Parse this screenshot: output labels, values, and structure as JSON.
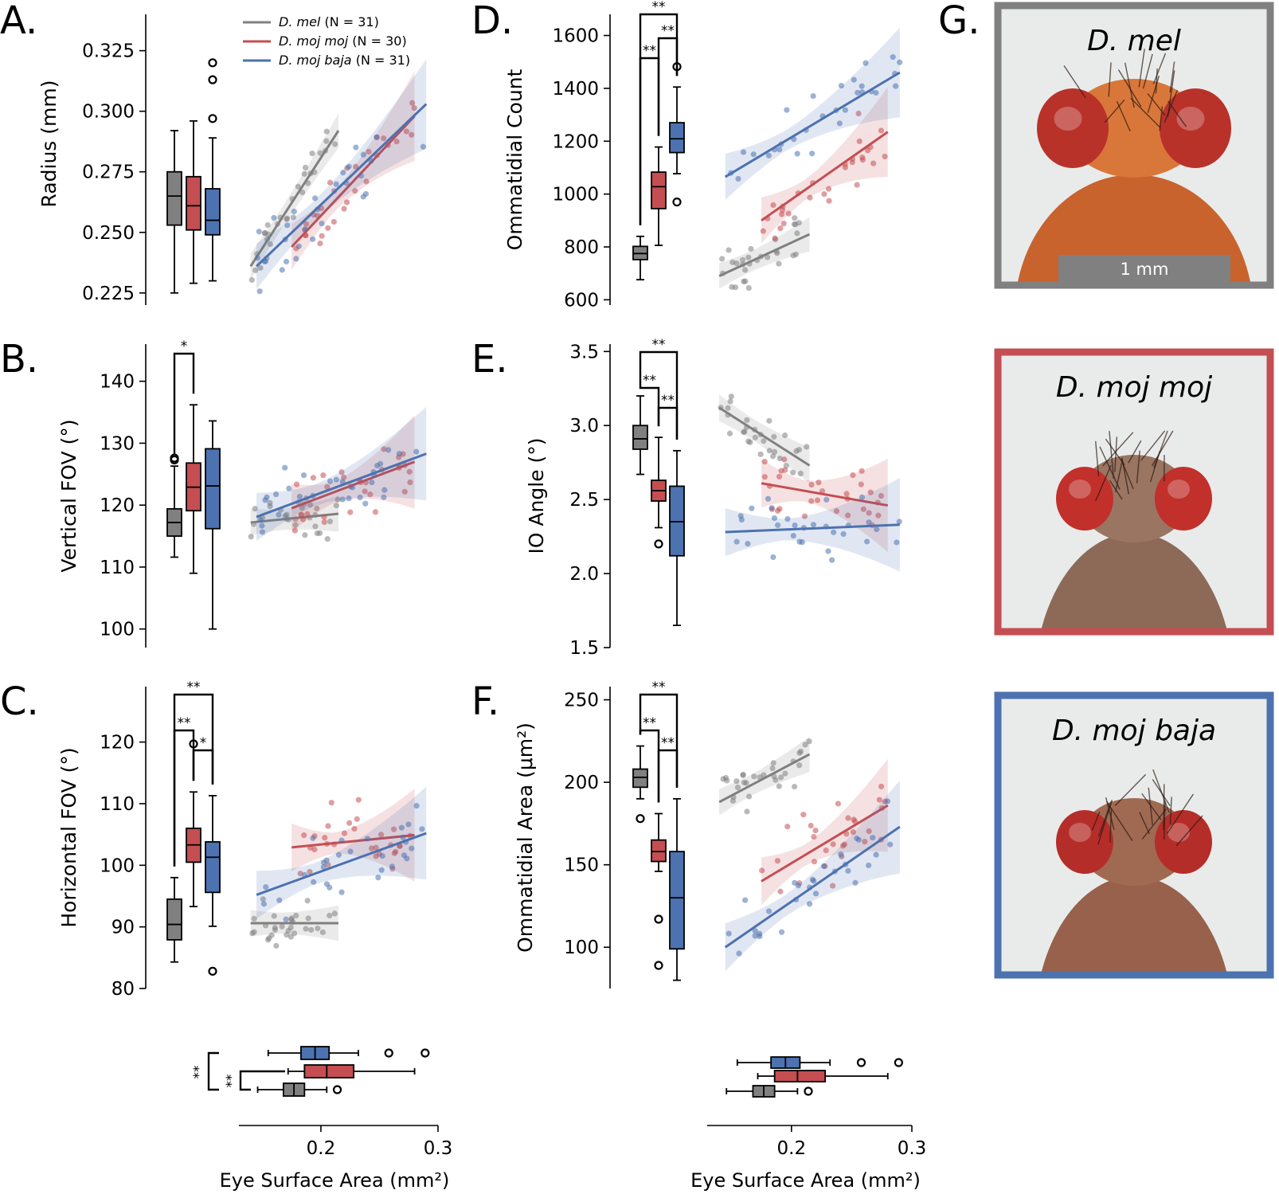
{
  "colors": {
    "mel": "#808080",
    "mojmoj": "#c44e52",
    "mojbaja": "#4c72b0"
  },
  "legend": {
    "items": [
      {
        "species": "D. mel",
        "n": "(N = 31)",
        "color": "#808080"
      },
      {
        "species": "D. moj moj",
        "n": "(N = 30)",
        "color": "#c44e52"
      },
      {
        "species": "D. moj baja",
        "n": "(N = 31)",
        "color": "#4c72b0"
      }
    ]
  },
  "eye_surface_area": {
    "xlabel": "Eye Surface Area (mm²)",
    "ticks": [
      "0.2",
      "0.3"
    ],
    "box_stats": {
      "mel": {
        "q1": 0.168,
        "median": 0.177,
        "q3": 0.186,
        "lo": 0.146,
        "hi": 0.205,
        "out": [
          0.214
        ]
      },
      "mojmoj": {
        "q1": 0.186,
        "median": 0.205,
        "q3": 0.228,
        "lo": 0.172,
        "hi": 0.28,
        "out": []
      },
      "mojbaja": {
        "q1": 0.183,
        "median": 0.195,
        "q3": 0.207,
        "lo": 0.155,
        "hi": 0.232,
        "out": [
          0.258,
          0.289
        ]
      }
    },
    "sig_markers": [
      "**",
      "**"
    ]
  },
  "chart_data": [
    {
      "panel": "A.",
      "type": "box+scatter",
      "ylabel": "Radius (mm)",
      "ylim": [
        0.22,
        0.34
      ],
      "yticks": [
        "0.225",
        "0.250",
        "0.275",
        "0.300",
        "0.325"
      ],
      "box": {
        "mel": {
          "q1": 0.253,
          "median": 0.265,
          "q3": 0.275,
          "lo": 0.225,
          "hi": 0.292,
          "out": []
        },
        "mojmoj": {
          "q1": 0.251,
          "median": 0.261,
          "q3": 0.273,
          "lo": 0.229,
          "hi": 0.296,
          "out": []
        },
        "mojbaja": {
          "q1": 0.249,
          "median": 0.255,
          "q3": 0.268,
          "lo": 0.23,
          "hi": 0.289,
          "out": [
            0.297,
            0.313,
            0.32
          ]
        }
      },
      "fit": {
        "mel": {
          "x": [
            0.14,
            0.215
          ],
          "y": [
            0.236,
            0.292
          ]
        },
        "mojmoj": {
          "x": [
            0.175,
            0.28
          ],
          "y": [
            0.244,
            0.298
          ]
        },
        "mojbaja": {
          "x": [
            0.145,
            0.29
          ],
          "y": [
            0.236,
            0.303
          ]
        }
      },
      "sig": []
    },
    {
      "panel": "B.",
      "type": "box+scatter",
      "ylabel": "Vertical FOV (°)",
      "ylim": [
        97,
        146
      ],
      "yticks": [
        "100",
        "110",
        "120",
        "130",
        "140"
      ],
      "box": {
        "mel": {
          "q1": 115,
          "median": 117.2,
          "q3": 119.4,
          "lo": 111.6,
          "hi": 126.3,
          "out": [
            127.3,
            127.6
          ]
        },
        "mojmoj": {
          "q1": 119.1,
          "median": 122.9,
          "q3": 126.8,
          "lo": 109.0,
          "hi": 136.2,
          "out": []
        },
        "mojbaja": {
          "q1": 116.2,
          "median": 123.1,
          "q3": 129.1,
          "lo": 100.0,
          "hi": 133.6,
          "out": []
        }
      },
      "fit": {
        "mel": {
          "x": [
            0.14,
            0.215
          ],
          "y": [
            117.2,
            118.6
          ]
        },
        "mojmoj": {
          "x": [
            0.175,
            0.28
          ],
          "y": [
            119.5,
            127.0
          ]
        },
        "mojbaja": {
          "x": [
            0.145,
            0.29
          ],
          "y": [
            118.1,
            128.3
          ]
        }
      },
      "sig": [
        {
          "pair": [
            "mel",
            "mojmoj"
          ],
          "label": "*"
        }
      ]
    },
    {
      "panel": "C.",
      "type": "box+scatter",
      "ylabel": "Horizontal FOV (°)",
      "ylim": [
        80,
        129
      ],
      "yticks": [
        "80",
        "90",
        "100",
        "110",
        "120"
      ],
      "box": {
        "mel": {
          "q1": 87.9,
          "median": 90.4,
          "q3": 94.5,
          "lo": 84.3,
          "hi": 98.0,
          "out": []
        },
        "mojmoj": {
          "q1": 100.5,
          "median": 103.3,
          "q3": 106.0,
          "lo": 93.3,
          "hi": 111.9,
          "out": [
            119.7
          ]
        },
        "mojbaja": {
          "q1": 95.6,
          "median": 101.3,
          "q3": 103.8,
          "lo": 90.1,
          "hi": 111.3,
          "out": [
            82.8
          ]
        }
      },
      "fit": {
        "mel": {
          "x": [
            0.14,
            0.215
          ],
          "y": [
            90.6,
            90.6
          ]
        },
        "mojmoj": {
          "x": [
            0.175,
            0.28
          ],
          "y": [
            102.9,
            104.9
          ]
        },
        "mojbaja": {
          "x": [
            0.145,
            0.29
          ],
          "y": [
            95.2,
            105.2
          ]
        }
      },
      "sig": [
        {
          "pair": [
            "mel",
            "mojbaja"
          ],
          "label": "**"
        },
        {
          "pair": [
            "mel",
            "mojmoj"
          ],
          "label": "**"
        },
        {
          "pair": [
            "mojmoj",
            "mojbaja"
          ],
          "label": "*"
        }
      ]
    },
    {
      "panel": "D.",
      "type": "box+scatter",
      "ylabel": "Ommatidial Count",
      "ylim": [
        580,
        1680
      ],
      "yticks": [
        "600",
        "800",
        "1000",
        "1200",
        "1400",
        "1600"
      ],
      "box": {
        "mel": {
          "q1": 752,
          "median": 775,
          "q3": 802,
          "lo": 676,
          "hi": 840,
          "out": []
        },
        "mojmoj": {
          "q1": 945,
          "median": 1028,
          "q3": 1083,
          "lo": 806,
          "hi": 1178,
          "out": []
        },
        "mojbaja": {
          "q1": 1157,
          "median": 1209,
          "q3": 1270,
          "lo": 1077,
          "hi": 1405,
          "out": [
            970,
            1482
          ]
        }
      },
      "fit": {
        "mel": {
          "x": [
            0.14,
            0.215
          ],
          "y": [
            690,
            848
          ]
        },
        "mojmoj": {
          "x": [
            0.175,
            0.28
          ],
          "y": [
            900,
            1235
          ]
        },
        "mojbaja": {
          "x": [
            0.145,
            0.29
          ],
          "y": [
            1065,
            1460
          ]
        }
      },
      "sig": [
        {
          "pair": [
            "mel",
            "mojbaja"
          ],
          "label": "**"
        },
        {
          "pair": [
            "mel",
            "mojmoj"
          ],
          "label": "**"
        },
        {
          "pair": [
            "mojmoj",
            "mojbaja"
          ],
          "label": "**"
        }
      ]
    },
    {
      "panel": "E.",
      "type": "box+scatter",
      "ylabel": "IO Angle (°)",
      "ylim": [
        1.5,
        3.55
      ],
      "yticks": [
        "1.5",
        "2.0",
        "2.5",
        "3.0",
        "3.5"
      ],
      "box": {
        "mel": {
          "q1": 2.84,
          "median": 2.91,
          "q3": 3.0,
          "lo": 2.67,
          "hi": 3.2,
          "out": []
        },
        "mojmoj": {
          "q1": 2.49,
          "median": 2.56,
          "q3": 2.63,
          "lo": 2.31,
          "hi": 2.92,
          "out": [
            2.2
          ]
        },
        "mojbaja": {
          "q1": 2.12,
          "median": 2.35,
          "q3": 2.59,
          "lo": 1.65,
          "hi": 2.83,
          "out": []
        }
      },
      "fit": {
        "mel": {
          "x": [
            0.14,
            0.215
          ],
          "y": [
            3.12,
            2.73
          ]
        },
        "mojmoj": {
          "x": [
            0.175,
            0.28
          ],
          "y": [
            2.61,
            2.46
          ]
        },
        "mojbaja": {
          "x": [
            0.145,
            0.29
          ],
          "y": [
            2.28,
            2.33
          ]
        }
      },
      "sig": [
        {
          "pair": [
            "mel",
            "mojbaja"
          ],
          "label": "**"
        },
        {
          "pair": [
            "mel",
            "mojmoj"
          ],
          "label": "**"
        },
        {
          "pair": [
            "mojmoj",
            "mojbaja"
          ],
          "label": "**"
        }
      ]
    },
    {
      "panel": "F.",
      "type": "box+scatter",
      "ylabel": "Ommatidial Area (μm²)",
      "ylim": [
        75,
        258
      ],
      "yticks": [
        "100",
        "150",
        "200",
        "250"
      ],
      "box": {
        "mel": {
          "q1": 197,
          "median": 203,
          "q3": 208,
          "lo": 190,
          "hi": 222,
          "out": [
            178
          ]
        },
        "mojmoj": {
          "q1": 152,
          "median": 158,
          "q3": 165,
          "lo": 146,
          "hi": 181,
          "out": [
            117,
            89
          ]
        },
        "mojbaja": {
          "q1": 99,
          "median": 130,
          "q3": 158,
          "lo": 80,
          "hi": 190,
          "out": []
        }
      },
      "fit": {
        "mel": {
          "x": [
            0.14,
            0.215
          ],
          "y": [
            188,
            217
          ]
        },
        "mojmoj": {
          "x": [
            0.175,
            0.28
          ],
          "y": [
            140,
            186
          ]
        },
        "mojbaja": {
          "x": [
            0.145,
            0.29
          ],
          "y": [
            100,
            173
          ]
        }
      },
      "sig": [
        {
          "pair": [
            "mel",
            "mojbaja"
          ],
          "label": "**"
        },
        {
          "pair": [
            "mel",
            "mojmoj"
          ],
          "label": "**"
        },
        {
          "pair": [
            "mojmoj",
            "mojbaja"
          ],
          "label": "**"
        }
      ]
    }
  ],
  "photos": {
    "letter": "G.",
    "items": [
      {
        "title": "D. mel",
        "border": "#808080",
        "body": "#d9773a",
        "thorax": "#c8632d",
        "eye": "#b8322a",
        "scalebar": "1 mm"
      },
      {
        "title": "D. moj moj",
        "border": "#c44e52",
        "body": "#9a7561",
        "thorax": "#8d6a58",
        "eye": "#c1302b",
        "scalebar": ""
      },
      {
        "title": "D. moj baja",
        "border": "#4c72b0",
        "body": "#a06a52",
        "thorax": "#98614c",
        "eye": "#b52d29",
        "scalebar": ""
      }
    ]
  }
}
